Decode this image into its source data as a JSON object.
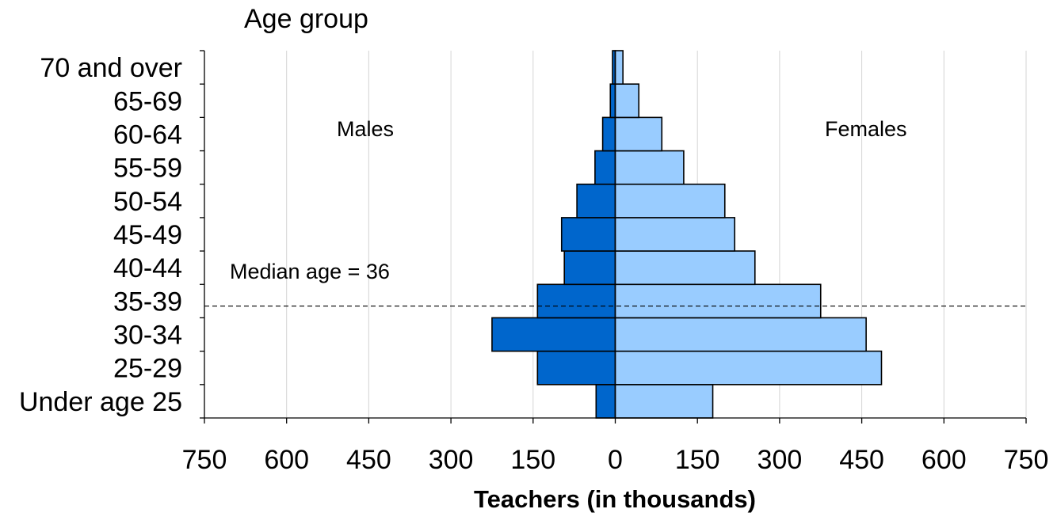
{
  "chart_data": {
    "type": "bar",
    "orientation": "horizontal-pyramid",
    "ylabel": "Age group",
    "xlabel": "Teachers (in thousands)",
    "categories": [
      "Under age 25",
      "25-29",
      "30-34",
      "35-39",
      "40-44",
      "45-49",
      "50-54",
      "55-59",
      "60-64",
      "65-69",
      "70 and over"
    ],
    "series": [
      {
        "name": "Males",
        "side": "left",
        "color": "#0066cc",
        "values": [
          35,
          142,
          225,
          142,
          93,
          98,
          70,
          37,
          23,
          9,
          5
        ]
      },
      {
        "name": "Females",
        "side": "right",
        "color": "#99ccff",
        "values": [
          178,
          486,
          458,
          375,
          255,
          218,
          200,
          125,
          85,
          43,
          14
        ]
      }
    ],
    "xlim": [
      -750,
      750
    ],
    "xticks": [
      -750,
      -600,
      -450,
      -300,
      -150,
      0,
      150,
      300,
      450,
      600,
      750
    ],
    "xtick_labels": [
      "750",
      "600",
      "450",
      "300",
      "150",
      "0",
      "150",
      "300",
      "450",
      "600",
      "750"
    ],
    "grid": true,
    "annotations": [
      {
        "id": "median",
        "text": "Median age = 36",
        "type": "dashed-line",
        "at_age": 36
      }
    ],
    "side_labels": {
      "left": "Males",
      "right": "Females"
    }
  }
}
